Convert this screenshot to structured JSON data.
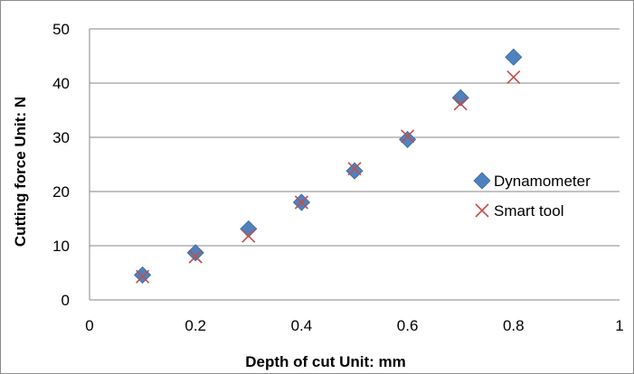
{
  "chart_data": {
    "type": "scatter",
    "xlabel": "Depth of cut  Unit: mm",
    "ylabel": "Cutting force  Unit: N",
    "xlim": [
      0,
      1
    ],
    "ylim": [
      0,
      50
    ],
    "x_ticks": [
      "0",
      "0.2",
      "0.4",
      "0.6",
      "0.8",
      "1"
    ],
    "y_ticks": [
      "0",
      "10",
      "20",
      "30",
      "40",
      "50"
    ],
    "grid": "horizontal",
    "legend_position": "right",
    "series": [
      {
        "name": "Dynamometer",
        "marker": "diamond",
        "color": "#4f81bd",
        "points": [
          {
            "x": 0.1,
            "y": 4.6
          },
          {
            "x": 0.2,
            "y": 8.7
          },
          {
            "x": 0.3,
            "y": 13.1
          },
          {
            "x": 0.4,
            "y": 18.0
          },
          {
            "x": 0.5,
            "y": 23.8
          },
          {
            "x": 0.6,
            "y": 29.6
          },
          {
            "x": 0.7,
            "y": 37.3
          },
          {
            "x": 0.8,
            "y": 44.8
          }
        ]
      },
      {
        "name": "Smart tool",
        "marker": "x",
        "color": "#c0504d",
        "points": [
          {
            "x": 0.1,
            "y": 4.3
          },
          {
            "x": 0.2,
            "y": 8.0
          },
          {
            "x": 0.3,
            "y": 11.8
          },
          {
            "x": 0.4,
            "y": 18.0
          },
          {
            "x": 0.5,
            "y": 24.2
          },
          {
            "x": 0.6,
            "y": 30.2
          },
          {
            "x": 0.7,
            "y": 36.2
          },
          {
            "x": 0.8,
            "y": 41.1
          }
        ]
      }
    ]
  }
}
